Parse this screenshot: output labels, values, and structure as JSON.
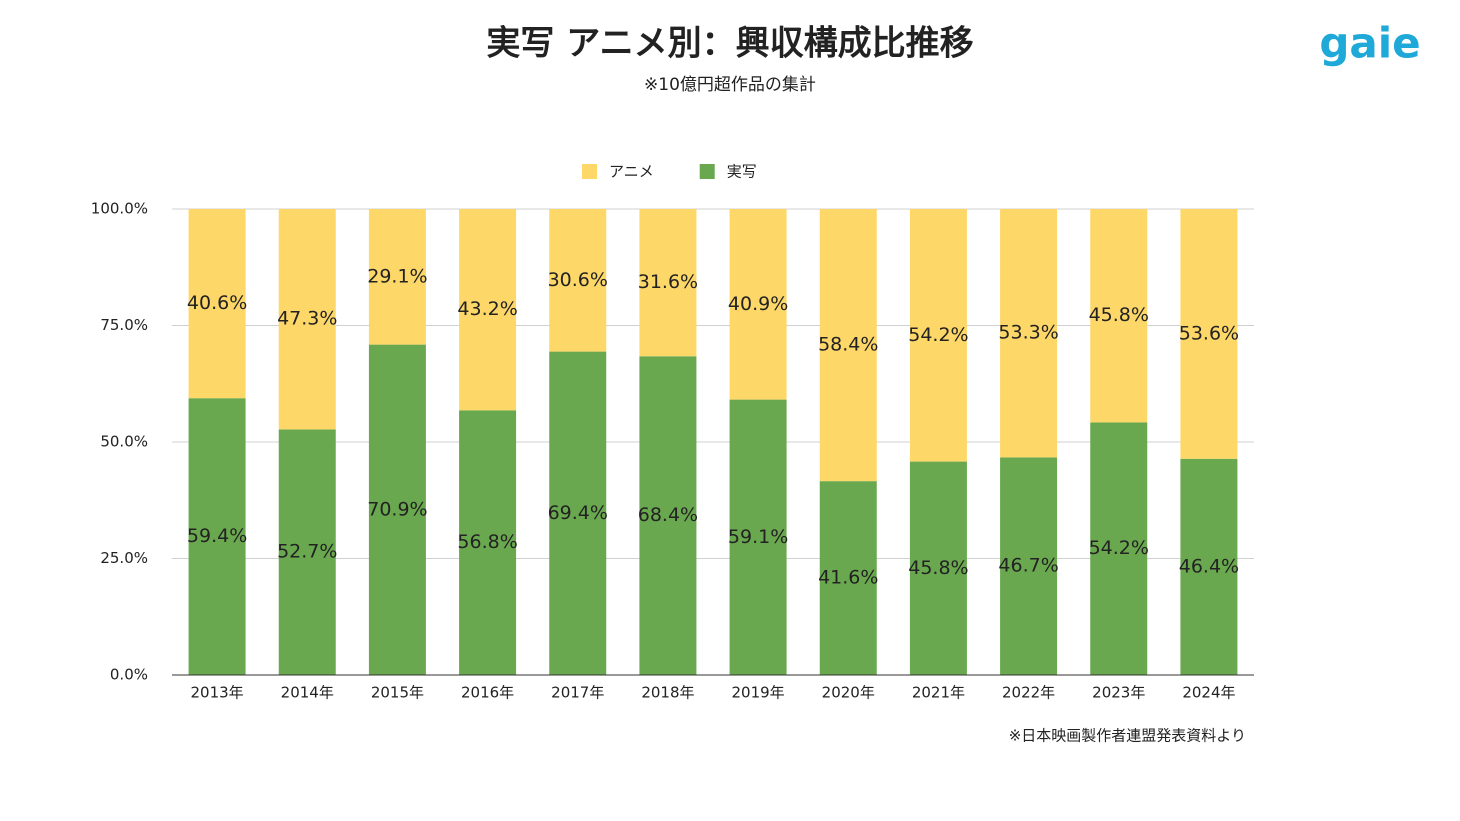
{
  "chart_data": {
    "type": "stacked_bar_100",
    "title": "実写 アニメ別：興収構成比推移",
    "subtitle": "※10億円超作品の集計",
    "source": "※日本映画製作者連盟発表資料より",
    "logo": "gaie",
    "categories": [
      "2013年",
      "2014年",
      "2015年",
      "2016年",
      "2017年",
      "2018年",
      "2019年",
      "2020年",
      "2021年",
      "2022年",
      "2023年",
      "2024年"
    ],
    "series": [
      {
        "name": "アニメ",
        "color": "#fdd768",
        "values": [
          40.6,
          47.3,
          29.1,
          43.2,
          30.6,
          31.6,
          40.9,
          58.4,
          54.2,
          53.3,
          45.8,
          53.6
        ],
        "value_labels": [
          "40.6%",
          "47.3%",
          "29.1%",
          "43.2%",
          "30.6%",
          "31.6%",
          "40.9%",
          "58.4%",
          "54.2%",
          "53.3%",
          "45.8%",
          "53.6%"
        ]
      },
      {
        "name": "実写",
        "color": "#6aa84f",
        "values": [
          59.4,
          52.7,
          70.9,
          56.8,
          69.4,
          68.4,
          59.1,
          41.6,
          45.8,
          46.7,
          54.2,
          46.4
        ],
        "value_labels": [
          "59.4%",
          "52.7%",
          "70.9%",
          "56.8%",
          "69.4%",
          "68.4%",
          "59.1%",
          "41.6%",
          "45.8%",
          "46.7%",
          "54.2%",
          "46.4%"
        ]
      }
    ],
    "ylim": [
      0,
      100
    ],
    "yticks": [
      {
        "value": 0,
        "label": "0.0%"
      },
      {
        "value": 25,
        "label": "25.0%"
      },
      {
        "value": 50,
        "label": "50.0%"
      },
      {
        "value": 75,
        "label": "75.0%"
      },
      {
        "value": 100,
        "label": "100.0%"
      }
    ],
    "grid": true,
    "legend": "top"
  }
}
